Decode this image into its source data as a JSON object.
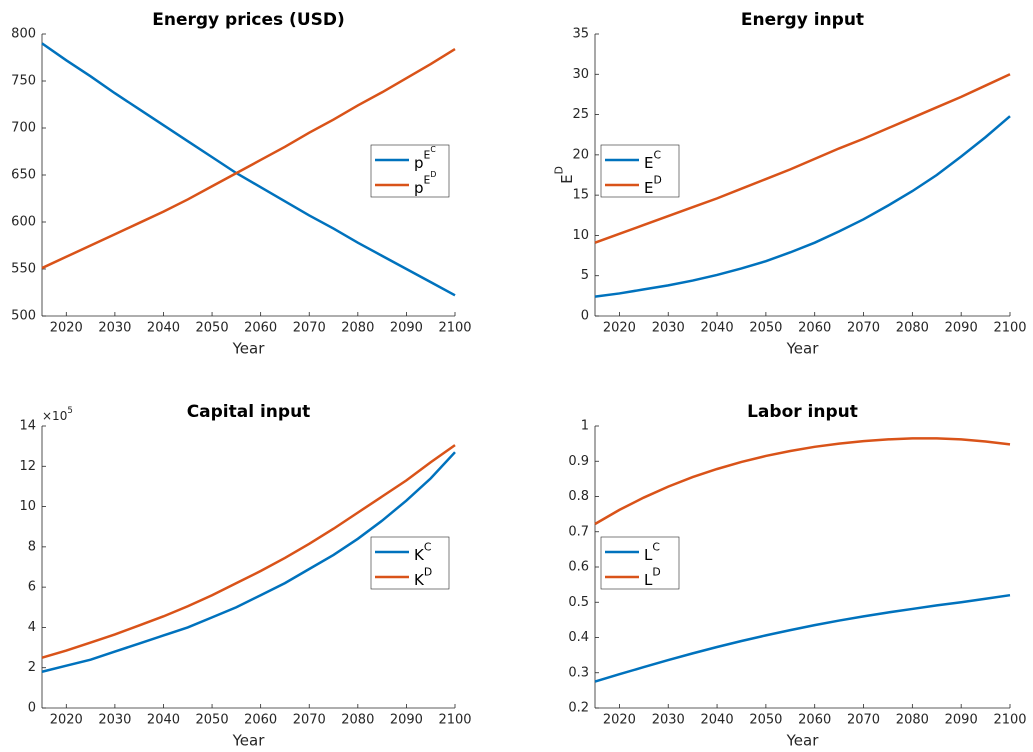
{
  "chart_data": [
    {
      "type": "line",
      "title": "Energy prices (USD)",
      "xlabel": "Year",
      "x": [
        2015,
        2020,
        2025,
        2030,
        2035,
        2040,
        2045,
        2050,
        2055,
        2060,
        2065,
        2070,
        2075,
        2080,
        2085,
        2090,
        2095,
        2100
      ],
      "xlim": [
        2015,
        2100
      ],
      "xticks": [
        2020,
        2030,
        2040,
        2050,
        2060,
        2070,
        2080,
        2090,
        2100
      ],
      "ylim": [
        500,
        800
      ],
      "yticks": [
        500,
        550,
        600,
        650,
        700,
        750,
        800
      ],
      "legend": "east",
      "series": [
        {
          "name": [
            "p",
            "E",
            "C"
          ],
          "color": "#0072BD",
          "values": [
            790,
            772,
            755,
            737,
            720,
            703,
            686,
            669,
            652,
            637,
            622,
            607,
            593,
            578,
            564,
            550,
            536,
            522
          ]
        },
        {
          "name": [
            "p",
            "E",
            "D"
          ],
          "color": "#D95319",
          "values": [
            551,
            563,
            575,
            587,
            599,
            611,
            624,
            638,
            652,
            666,
            680,
            695,
            709,
            724,
            738,
            753,
            768,
            784
          ]
        }
      ]
    },
    {
      "type": "line",
      "title": "Energy input",
      "xlabel": "Year",
      "ylabel": [
        "E",
        "D"
      ],
      "x": [
        2015,
        2020,
        2025,
        2030,
        2035,
        2040,
        2045,
        2050,
        2055,
        2060,
        2065,
        2070,
        2075,
        2080,
        2085,
        2090,
        2095,
        2100
      ],
      "xlim": [
        2015,
        2100
      ],
      "xticks": [
        2020,
        2030,
        2040,
        2050,
        2060,
        2070,
        2080,
        2090,
        2100
      ],
      "ylim": [
        0,
        35
      ],
      "yticks": [
        0,
        5,
        10,
        15,
        20,
        25,
        30,
        35
      ],
      "legend": "west",
      "series": [
        {
          "name": [
            "E",
            "C"
          ],
          "color": "#0072BD",
          "values": [
            2.4,
            2.8,
            3.3,
            3.8,
            4.4,
            5.1,
            5.9,
            6.8,
            7.9,
            9.1,
            10.5,
            12.0,
            13.7,
            15.5,
            17.5,
            19.8,
            22.2,
            24.8
          ]
        },
        {
          "name": [
            "E",
            "D"
          ],
          "color": "#D95319",
          "values": [
            9.1,
            10.2,
            11.3,
            12.4,
            13.5,
            14.6,
            15.8,
            17.0,
            18.2,
            19.5,
            20.8,
            22.0,
            23.3,
            24.6,
            25.9,
            27.2,
            28.6,
            30.0
          ]
        }
      ]
    },
    {
      "type": "line",
      "title": "Capital input",
      "xlabel": "Year",
      "axis_exponent": [
        "×10",
        "5"
      ],
      "x": [
        2015,
        2020,
        2025,
        2030,
        2035,
        2040,
        2045,
        2050,
        2055,
        2060,
        2065,
        2070,
        2075,
        2080,
        2085,
        2090,
        2095,
        2100
      ],
      "xlim": [
        2015,
        2100
      ],
      "xticks": [
        2020,
        2030,
        2040,
        2050,
        2060,
        2070,
        2080,
        2090,
        2100
      ],
      "ylim": [
        0,
        14
      ],
      "yticks": [
        0,
        2,
        4,
        6,
        8,
        10,
        12,
        14
      ],
      "legend": "east",
      "series": [
        {
          "name": [
            "K",
            "C"
          ],
          "color": "#0072BD",
          "values": [
            1.8,
            2.1,
            2.4,
            2.8,
            3.2,
            3.6,
            4.0,
            4.5,
            5.0,
            5.6,
            6.2,
            6.9,
            7.6,
            8.4,
            9.3,
            10.3,
            11.4,
            12.7
          ]
        },
        {
          "name": [
            "K",
            "D"
          ],
          "color": "#D95319",
          "values": [
            2.5,
            2.85,
            3.25,
            3.65,
            4.1,
            4.55,
            5.05,
            5.6,
            6.2,
            6.8,
            7.45,
            8.15,
            8.9,
            9.7,
            10.5,
            11.3,
            12.2,
            13.05
          ]
        }
      ]
    },
    {
      "type": "line",
      "title": "Labor input",
      "xlabel": "Year",
      "x": [
        2015,
        2020,
        2025,
        2030,
        2035,
        2040,
        2045,
        2050,
        2055,
        2060,
        2065,
        2070,
        2075,
        2080,
        2085,
        2090,
        2095,
        2100
      ],
      "xlim": [
        2015,
        2100
      ],
      "xticks": [
        2020,
        2030,
        2040,
        2050,
        2060,
        2070,
        2080,
        2090,
        2100
      ],
      "ylim": [
        0.2,
        1
      ],
      "yticks": [
        0.2,
        0.3,
        0.4,
        0.5,
        0.6,
        0.7,
        0.8,
        0.9,
        1
      ],
      "legend": "west",
      "series": [
        {
          "name": [
            "L",
            "C"
          ],
          "color": "#0072BD",
          "values": [
            0.275,
            0.296,
            0.316,
            0.336,
            0.355,
            0.373,
            0.39,
            0.406,
            0.421,
            0.435,
            0.448,
            0.46,
            0.471,
            0.481,
            0.491,
            0.5,
            0.51,
            0.52
          ]
        },
        {
          "name": [
            "L",
            "D"
          ],
          "color": "#D95319",
          "values": [
            0.722,
            0.762,
            0.797,
            0.828,
            0.855,
            0.878,
            0.898,
            0.915,
            0.929,
            0.941,
            0.95,
            0.957,
            0.962,
            0.965,
            0.965,
            0.962,
            0.956,
            0.948
          ]
        }
      ]
    }
  ]
}
